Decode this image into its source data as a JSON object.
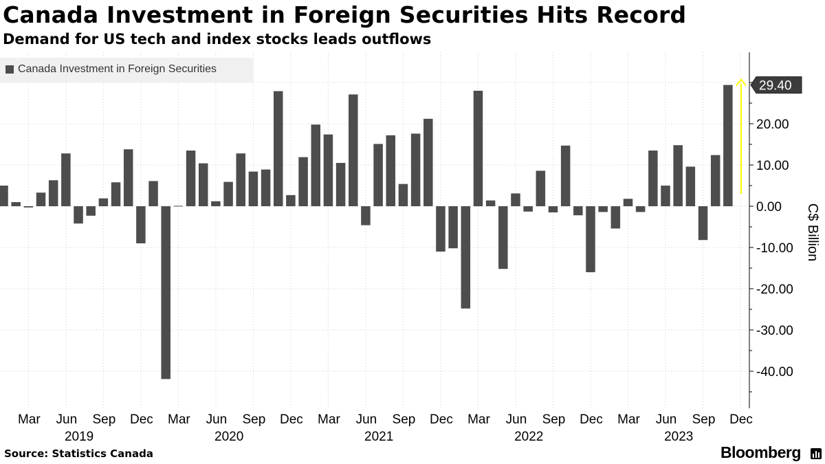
{
  "header": {
    "title": "Canada Investment in Foreign Securities Hits Record",
    "subtitle": "Demand for US tech and index stocks leads outflows"
  },
  "footer": {
    "source": "Source: Statistics Canada",
    "brand": "Bloomberg",
    "brand_icon": "bloomberg-chart-icon"
  },
  "colors": {
    "bar": "#4d4d4d",
    "grid": "#cccccc",
    "axis": "#000000",
    "callout_bg": "#3c3c3c",
    "highlight_arrow": "#ffff00",
    "legend_bg": "#f0f0f0"
  },
  "chart_data": {
    "type": "bar",
    "title": "Canada Investment in Foreign Securities Hits Record",
    "subtitle": "Demand for US tech and index stocks leads outflows",
    "xlabel": "",
    "ylabel": "C$ Billion",
    "ylim": [
      -45,
      31
    ],
    "yticks": [
      20,
      10,
      0,
      -10,
      -20,
      -30,
      -40
    ],
    "ytick_labels": [
      "20.00",
      "10.00",
      "0.00",
      "-10.00",
      "-20.00",
      "-30.00",
      "-40.00"
    ],
    "grid": true,
    "legend": {
      "position": "top-left",
      "entries": [
        "Canada Investment in Foreign Securities"
      ]
    },
    "categories": [
      "Jan 2019",
      "Feb 2019",
      "Mar 2019",
      "Apr 2019",
      "May 2019",
      "Jun 2019",
      "Jul 2019",
      "Aug 2019",
      "Sep 2019",
      "Oct 2019",
      "Nov 2019",
      "Dec 2019",
      "Jan 2020",
      "Feb 2020",
      "Mar 2020",
      "Apr 2020",
      "May 2020",
      "Jun 2020",
      "Jul 2020",
      "Aug 2020",
      "Sep 2020",
      "Oct 2020",
      "Nov 2020",
      "Dec 2020",
      "Jan 2021",
      "Feb 2021",
      "Mar 2021",
      "Apr 2021",
      "May 2021",
      "Jun 2021",
      "Jul 2021",
      "Aug 2021",
      "Sep 2021",
      "Oct 2021",
      "Nov 2021",
      "Dec 2021",
      "Jan 2022",
      "Feb 2022",
      "Mar 2022",
      "Apr 2022",
      "May 2022",
      "Jun 2022",
      "Jul 2022",
      "Aug 2022",
      "Sep 2022",
      "Oct 2022",
      "Nov 2022",
      "Dec 2022",
      "Jan 2023",
      "Feb 2023",
      "Mar 2023",
      "Apr 2023",
      "May 2023",
      "Jun 2023",
      "Jul 2023",
      "Aug 2023",
      "Sep 2023",
      "Oct 2023",
      "Nov 2023",
      "Dec 2023"
    ],
    "series": [
      {
        "name": "Canada Investment in Foreign Securities",
        "values": [
          5.0,
          1.0,
          -0.3,
          3.3,
          6.3,
          12.8,
          -4.2,
          -2.3,
          1.9,
          5.8,
          13.8,
          -9.0,
          6.1,
          -41.9,
          0.1,
          13.5,
          10.4,
          1.2,
          5.9,
          12.8,
          8.4,
          8.9,
          27.9,
          2.7,
          11.9,
          19.8,
          17.4,
          10.5,
          27.1,
          -4.6,
          15.1,
          17.2,
          5.4,
          17.6,
          21.2,
          -11.0,
          -10.2,
          -24.8,
          28.0,
          1.4,
          -15.2,
          3.1,
          -1.3,
          8.6,
          -1.5,
          14.7,
          -2.2,
          -16.0,
          -1.4,
          -5.4,
          1.8,
          -1.4,
          13.5,
          5.0,
          14.8,
          9.6,
          -8.2,
          12.4,
          29.4,
          null
        ]
      }
    ],
    "month_tick_labels": [
      "Mar",
      "Jun",
      "Sep",
      "Dec",
      "Mar",
      "Jun",
      "Sep",
      "Dec",
      "Mar",
      "Jun",
      "Sep",
      "Dec",
      "Mar",
      "Jun",
      "Sep",
      "Dec",
      "Mar",
      "Jun",
      "Sep",
      "Dec"
    ],
    "year_labels": [
      "2019",
      "2020",
      "2021",
      "2022",
      "2023"
    ],
    "annotations": [
      {
        "type": "last-value-callout",
        "text": "29.40",
        "value": 29.4
      },
      {
        "type": "highlight-arrow",
        "from": 3.0,
        "to": 29.4
      }
    ]
  }
}
